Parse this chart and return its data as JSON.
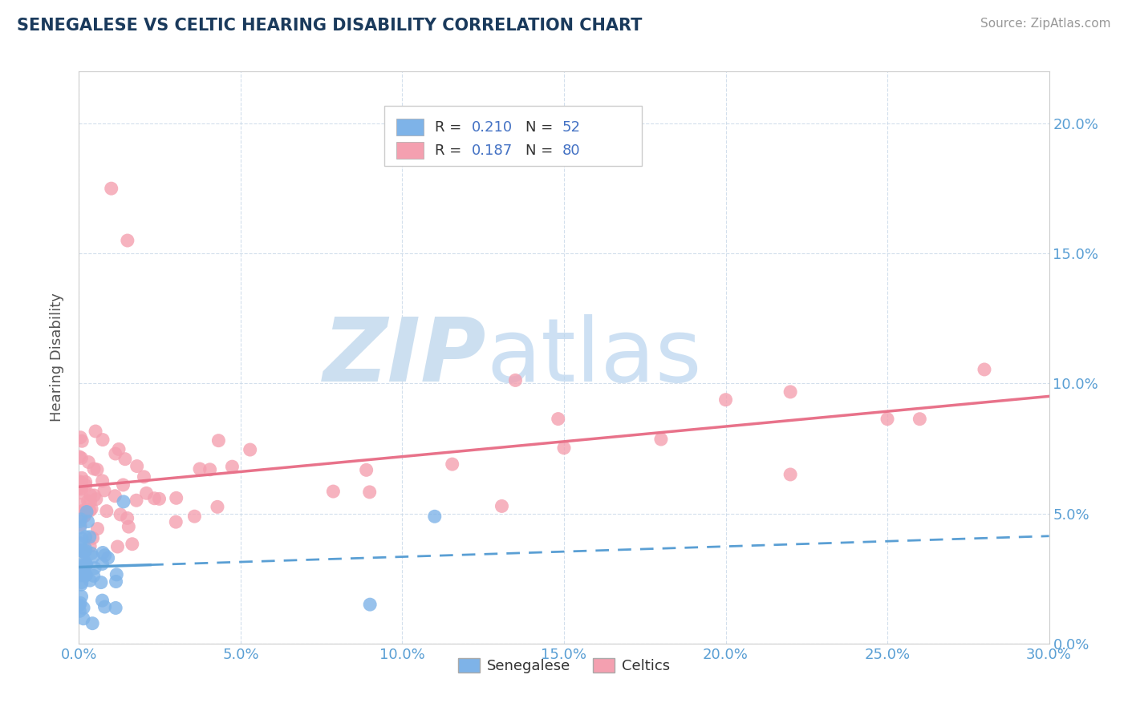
{
  "title": "SENEGALESE VS CELTIC HEARING DISABILITY CORRELATION CHART",
  "source": "Source: ZipAtlas.com",
  "xlim": [
    0.0,
    0.3
  ],
  "ylim": [
    0.0,
    0.22
  ],
  "ylabel": "Hearing Disability",
  "senegalese_color": "#7eb3e8",
  "celtic_color": "#f4a0b0",
  "senegalese_line_color": "#5a9fd4",
  "celtic_line_color": "#e8728a",
  "title_color": "#1a3a5c",
  "axis_label_color": "#5a9fd4",
  "watermark_color": "#ccdff0",
  "grid_color": "#c8d8e8",
  "background_color": "#ffffff"
}
